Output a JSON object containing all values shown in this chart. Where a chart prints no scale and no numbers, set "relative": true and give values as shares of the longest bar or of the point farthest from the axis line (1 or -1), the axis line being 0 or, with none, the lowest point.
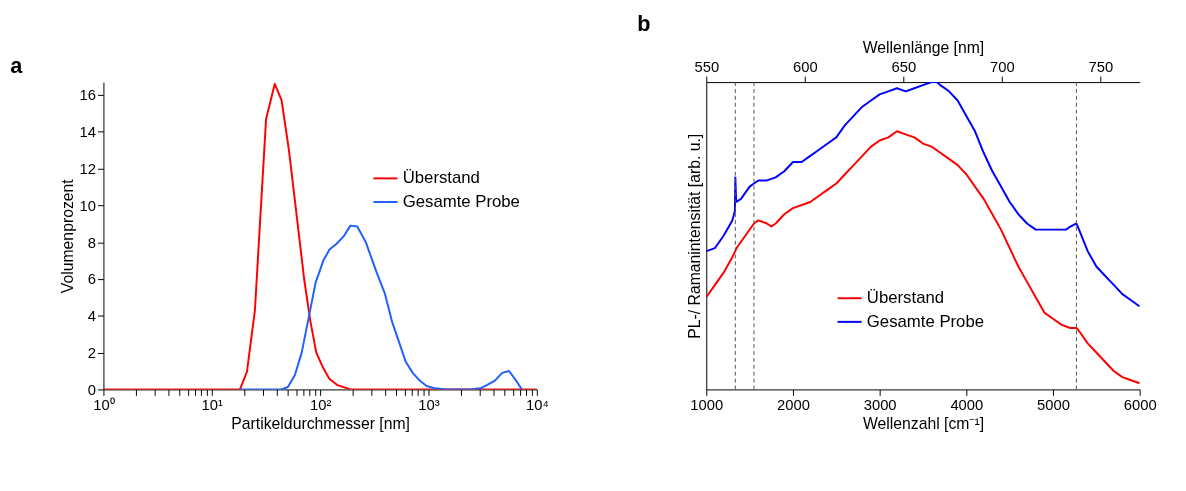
{
  "chart_data": [
    {
      "type": "line",
      "title": "a",
      "xlabel": "Partikeldurchmesser [nm]",
      "ylabel": "Volumenprozent",
      "log": "x",
      "xlim": [
        1,
        10000
      ],
      "xticks": [
        {
          "value": 1,
          "label": "10⁰"
        },
        {
          "value": 2,
          "label": null
        },
        {
          "value": 3,
          "label": null
        },
        {
          "value": 4,
          "label": null
        },
        {
          "value": 5,
          "label": null
        },
        {
          "value": 6,
          "label": null
        },
        {
          "value": 7,
          "label": null
        },
        {
          "value": 8,
          "label": null
        },
        {
          "value": 9,
          "label": null
        },
        {
          "value": 10,
          "label": "10¹"
        },
        {
          "value": 20,
          "label": null
        },
        {
          "value": 30,
          "label": null
        },
        {
          "value": 40,
          "label": null
        },
        {
          "value": 50,
          "label": null
        },
        {
          "value": 60,
          "label": null
        },
        {
          "value": 70,
          "label": null
        },
        {
          "value": 80,
          "label": null
        },
        {
          "value": 90,
          "label": null
        },
        {
          "value": 100,
          "label": "10²"
        },
        {
          "value": 200,
          "label": null
        },
        {
          "value": 300,
          "label": null
        },
        {
          "value": 400,
          "label": null
        },
        {
          "value": 500,
          "label": null
        },
        {
          "value": 600,
          "label": null
        },
        {
          "value": 700,
          "label": null
        },
        {
          "value": 800,
          "label": null
        },
        {
          "value": 900,
          "label": null
        },
        {
          "value": 1000,
          "label": "10³"
        },
        {
          "value": 2000,
          "label": null
        },
        {
          "value": 3000,
          "label": null
        },
        {
          "value": 4000,
          "label": null
        },
        {
          "value": 5000,
          "label": null
        },
        {
          "value": 6000,
          "label": null
        },
        {
          "value": 7000,
          "label": null
        },
        {
          "value": 8000,
          "label": null
        },
        {
          "value": 9000,
          "label": null
        },
        {
          "value": 10000,
          "label": "10⁴"
        }
      ],
      "ylim": [
        0,
        16.7
      ],
      "yticks": [
        0,
        2,
        4,
        6,
        8,
        10,
        12,
        14,
        16
      ],
      "grid": false,
      "legend": "top right",
      "line_style": "solid",
      "series": [
        {
          "name": "Überstand",
          "color": "#ff0000",
          "x": [
            1,
            18.2,
            21.1,
            25.0,
            31.7,
            38.1,
            44.1,
            51.5,
            60.6,
            71.2,
            81.3,
            92.2,
            105,
            122,
            143,
            190,
            10000
          ],
          "values": [
            0,
            0,
            0.96,
            4.3,
            14.7,
            16.6,
            15.7,
            13.0,
            9.5,
            6.0,
            3.7,
            2.0,
            1.25,
            0.57,
            0.25,
            0,
            0
          ]
        },
        {
          "name": "Gesamte Probe",
          "color": "#2060ff",
          "x": [
            18.2,
            43.9,
            50.4,
            58.4,
            67.6,
            78.4,
            90.8,
            107,
            122,
            141,
            164,
            190,
            220,
            264,
            330,
            396,
            460,
            533,
            617,
            715,
            829,
            960,
            1153,
            1439,
            2410,
            3008,
            3487,
            4101,
            4786,
            5546,
            6427,
            7280
          ],
          "values": [
            0,
            0,
            0.13,
            0.77,
            2.0,
            3.9,
            5.8,
            7.0,
            7.6,
            7.9,
            8.3,
            8.9,
            8.85,
            8.0,
            6.4,
            5.2,
            3.7,
            2.6,
            1.5,
            0.9,
            0.48,
            0.19,
            0.06,
            0,
            0,
            0.06,
            0.25,
            0.48,
            0.9,
            1.0,
            0.48,
            0
          ]
        }
      ]
    },
    {
      "type": "line",
      "title": "b",
      "xlabel": "Wellenzahl [cm⁻¹]",
      "ylabel": "PL-/ Ramanintensität [arb. u.]",
      "x2label": "Wellenlänge [nm]",
      "relative": true,
      "xlim": [
        1000,
        6000
      ],
      "xticks": [
        1000,
        2000,
        3000,
        4000,
        5000,
        6000
      ],
      "x2lim": [
        550,
        770
      ],
      "x2ticks": [
        550,
        600,
        650,
        700,
        750
      ],
      "grid": false,
      "legend": "bottom",
      "line_style": "solid",
      "ref_lines": [
        {
          "axis": "x",
          "value": 1335,
          "label": null,
          "color": "#555555",
          "line_style": "dashed"
        },
        {
          "axis": "x",
          "value": 1550,
          "label": null,
          "color": "#555555",
          "line_style": "dashed"
        },
        {
          "axis": "x",
          "value": 5270,
          "label": null,
          "color": "#555555",
          "line_style": "dashed"
        }
      ],
      "series": [
        {
          "name": "Überstand",
          "color": "#ff0000",
          "x": [
            1000,
            1100,
            1200,
            1300,
            1350,
            1450,
            1550,
            1600,
            1700,
            1750,
            1800,
            1900,
            2000,
            2200,
            2300,
            2400,
            2500,
            2600,
            2700,
            2800,
            2900,
            3000,
            3100,
            3200,
            3300,
            3400,
            3500,
            3600,
            3700,
            3800,
            3900,
            4000,
            4100,
            4200,
            4300,
            4400,
            4500,
            4600,
            4700,
            4800,
            4900,
            5000,
            5100,
            5200,
            5270,
            5300,
            5400,
            5500,
            5600,
            5700,
            5800,
            5900,
            6000
          ],
          "values": [
            0.3,
            0.34,
            0.38,
            0.43,
            0.46,
            0.5,
            0.54,
            0.55,
            0.54,
            0.53,
            0.54,
            0.57,
            0.59,
            0.61,
            0.63,
            0.65,
            0.67,
            0.7,
            0.73,
            0.76,
            0.79,
            0.81,
            0.82,
            0.84,
            0.83,
            0.82,
            0.8,
            0.79,
            0.77,
            0.75,
            0.73,
            0.7,
            0.66,
            0.62,
            0.57,
            0.52,
            0.46,
            0.4,
            0.35,
            0.3,
            0.25,
            0.23,
            0.21,
            0.2,
            0.2,
            0.19,
            0.15,
            0.12,
            0.09,
            0.06,
            0.04,
            0.03,
            0.02
          ]
        },
        {
          "name": "Gesamte Probe",
          "color": "#0000ff",
          "x": [
            1000,
            1100,
            1200,
            1300,
            1330,
            1335,
            1345,
            1400,
            1500,
            1550,
            1600,
            1700,
            1800,
            1900,
            2000,
            2100,
            2200,
            2300,
            2400,
            2500,
            2600,
            2700,
            2800,
            2900,
            3000,
            3100,
            3200,
            3300,
            3400,
            3500,
            3600,
            3660,
            3700,
            3800,
            3900,
            4000,
            4100,
            4200,
            4300,
            4400,
            4500,
            4600,
            4700,
            4800,
            4900,
            5000,
            5100,
            5150,
            5200,
            5270,
            5300,
            5400,
            5500,
            5600,
            5700,
            5800,
            5900,
            6000
          ],
          "values": [
            0.45,
            0.46,
            0.5,
            0.55,
            0.58,
            0.69,
            0.61,
            0.62,
            0.66,
            0.67,
            0.68,
            0.68,
            0.69,
            0.71,
            0.74,
            0.74,
            0.76,
            0.78,
            0.8,
            0.82,
            0.86,
            0.89,
            0.92,
            0.94,
            0.96,
            0.97,
            0.98,
            0.97,
            0.98,
            0.99,
            1.0,
            1.0,
            0.99,
            0.97,
            0.94,
            0.89,
            0.84,
            0.77,
            0.71,
            0.66,
            0.61,
            0.57,
            0.54,
            0.52,
            0.52,
            0.52,
            0.52,
            0.52,
            0.53,
            0.54,
            0.52,
            0.45,
            0.4,
            0.37,
            0.34,
            0.31,
            0.29,
            0.27
          ]
        }
      ]
    }
  ]
}
